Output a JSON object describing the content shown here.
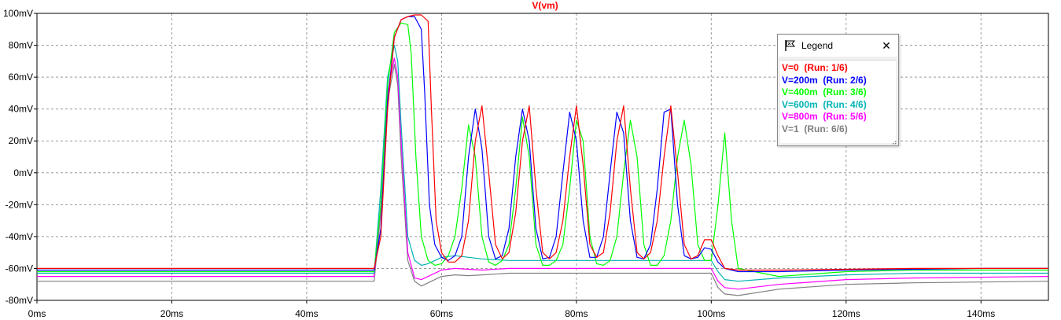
{
  "chart_data": {
    "type": "line",
    "title": "V(vm)",
    "title_color": "#ff0000",
    "xlabel": "",
    "ylabel": "",
    "xlim": [
      0,
      150
    ],
    "ylim": [
      -80,
      100
    ],
    "x_unit": "ms",
    "y_unit": "mV",
    "xticks": [
      0,
      20,
      40,
      60,
      80,
      100,
      120,
      140
    ],
    "yticks": [
      -80,
      -60,
      -40,
      -20,
      0,
      20,
      40,
      60,
      80,
      100
    ],
    "x_tick_labels": [
      "0ms",
      "20ms",
      "40ms",
      "60ms",
      "80ms",
      "100ms",
      "120ms",
      "140ms"
    ],
    "y_tick_labels": [
      "-80mV",
      "-60mV",
      "-40mV",
      "-20mV",
      "0mV",
      "20mV",
      "40mV",
      "60mV",
      "80mV",
      "100mV"
    ],
    "grid": true,
    "legend_position": "top-right",
    "series": [
      {
        "name": "V=0",
        "run": "(Run: 1/6)",
        "color": "#ff0000",
        "x": [
          0,
          50,
          51,
          52,
          53,
          54,
          55,
          56,
          57,
          58,
          58.5,
          59.2,
          60,
          61,
          62,
          63,
          64,
          65,
          66,
          67,
          68,
          69,
          70,
          71,
          72,
          73,
          74,
          75,
          76,
          77,
          78,
          79,
          80,
          81,
          82,
          83,
          84,
          85,
          86,
          87,
          88,
          89,
          90,
          91,
          92,
          93,
          94,
          95,
          96,
          97,
          98,
          99,
          100,
          101,
          102,
          104,
          110,
          120,
          130,
          140,
          150
        ],
        "y": [
          -60,
          -60,
          -40,
          40,
          85,
          96,
          98,
          99,
          99,
          95,
          40,
          -30,
          -50,
          -56,
          -56,
          -52,
          -30,
          20,
          42,
          0,
          -45,
          -54,
          -50,
          -25,
          20,
          42,
          -10,
          -50,
          -54,
          -50,
          -30,
          10,
          42,
          5,
          -45,
          -53,
          -50,
          -25,
          20,
          42,
          -10,
          -50,
          -54,
          -50,
          -30,
          10,
          42,
          0,
          -45,
          -54,
          -52,
          -42,
          -42,
          -52,
          -60,
          -61,
          -61,
          -60.5,
          -60,
          -60,
          -60
        ]
      },
      {
        "name": "V=200m",
        "run": "(Run: 2/6)",
        "color": "#0000ff",
        "x": [
          0,
          50,
          51,
          52,
          53,
          54,
          55,
          56,
          57,
          57.5,
          58.2,
          59,
          60,
          61,
          62,
          63,
          64,
          65,
          66,
          67,
          68,
          69,
          70,
          71,
          72,
          73,
          74,
          75,
          76,
          77,
          78,
          79,
          80,
          81,
          82,
          83,
          84,
          85,
          86,
          87,
          88,
          89,
          90,
          91,
          92,
          93,
          94,
          95,
          96,
          97,
          98,
          99,
          100,
          101,
          102,
          104,
          110,
          120,
          130,
          140,
          150
        ],
        "y": [
          -61,
          -61,
          -35,
          45,
          85,
          96,
          98,
          98,
          90,
          50,
          -20,
          -45,
          -53,
          -55,
          -52,
          -40,
          10,
          40,
          15,
          -40,
          -54,
          -52,
          -35,
          10,
          40,
          20,
          -35,
          -54,
          -53,
          -40,
          0,
          38,
          20,
          -30,
          -53,
          -53,
          -40,
          0,
          38,
          25,
          -30,
          -53,
          -54,
          -45,
          -10,
          38,
          40,
          -20,
          -52,
          -54,
          -53,
          -47,
          -48,
          -56,
          -60,
          -62,
          -62,
          -61,
          -60.5,
          -60,
          -60
        ]
      },
      {
        "name": "V=400m",
        "run": "(Run: 3/6)",
        "color": "#00ff00",
        "x": [
          0,
          50,
          51,
          52,
          53,
          54,
          55,
          55.5,
          56.2,
          57,
          58,
          59,
          60,
          61,
          62,
          63,
          64,
          65,
          66,
          67,
          68,
          69,
          70,
          71,
          72,
          73,
          74,
          75,
          76,
          77,
          78,
          79,
          80,
          81,
          82,
          83,
          84,
          85,
          86,
          87,
          88,
          89,
          90,
          91,
          92,
          93,
          94,
          95,
          96,
          97,
          98,
          99,
          100,
          101,
          102,
          103,
          104,
          110,
          120,
          130,
          140,
          150
        ],
        "y": [
          -62,
          -62,
          -20,
          55,
          88,
          94,
          93,
          75,
          10,
          -40,
          -55,
          -58,
          -57,
          -52,
          -40,
          -10,
          30,
          10,
          -40,
          -56,
          -58,
          -55,
          -45,
          -10,
          35,
          10,
          -45,
          -58,
          -58,
          -55,
          -45,
          -10,
          33,
          20,
          -40,
          -57,
          -58,
          -55,
          -40,
          0,
          33,
          10,
          -45,
          -58,
          -58,
          -52,
          -30,
          10,
          33,
          5,
          -45,
          -55,
          -55,
          -20,
          25,
          -30,
          -60,
          -65,
          -62,
          -61,
          -61,
          -61
        ]
      },
      {
        "name": "V=600m",
        "run": "(Run: 4/6)",
        "color": "#00b3b3",
        "x": [
          0,
          50,
          51,
          52,
          53,
          53.5,
          54,
          55,
          56,
          57,
          58,
          60,
          62,
          64,
          66,
          70,
          80,
          90,
          100,
          101,
          102,
          104,
          110,
          120,
          130,
          140,
          150
        ],
        "y": [
          -63,
          -63,
          -10,
          60,
          80,
          70,
          30,
          -40,
          -55,
          -58,
          -57,
          -53,
          -52,
          -53,
          -54,
          -55,
          -55,
          -55,
          -55,
          -62,
          -67,
          -68,
          -66,
          -64,
          -63,
          -63,
          -63
        ]
      },
      {
        "name": "V=800m",
        "run": "(Run: 5/6)",
        "color": "#ff00ff",
        "x": [
          0,
          50,
          51,
          52,
          53,
          53.5,
          54,
          55,
          56,
          57,
          58,
          60,
          62,
          64,
          66,
          70,
          80,
          90,
          100,
          101,
          102,
          104,
          110,
          120,
          130,
          140,
          150
        ],
        "y": [
          -65,
          -65,
          -20,
          50,
          72,
          60,
          20,
          -50,
          -66,
          -67,
          -65,
          -61,
          -60,
          -60.5,
          -61,
          -60,
          -60,
          -60,
          -60,
          -68,
          -72,
          -73,
          -70,
          -67,
          -66,
          -65.5,
          -65
        ]
      },
      {
        "name": "V=1",
        "run": "(Run: 6/6)",
        "color": "#808080",
        "x": [
          0,
          50,
          51,
          52,
          53,
          53.5,
          54,
          55,
          56,
          57,
          58,
          60,
          62,
          64,
          66,
          70,
          80,
          90,
          100,
          101,
          102,
          104,
          110,
          120,
          130,
          140,
          150
        ],
        "y": [
          -68,
          -68,
          -25,
          45,
          68,
          55,
          10,
          -55,
          -68,
          -71,
          -69,
          -65,
          -64,
          -64.5,
          -64,
          -63,
          -63,
          -63,
          -63,
          -72,
          -76,
          -77,
          -73,
          -70,
          -69,
          -68.5,
          -68
        ]
      }
    ]
  },
  "legend": {
    "title": "Legend",
    "close_glyph": "✕"
  }
}
